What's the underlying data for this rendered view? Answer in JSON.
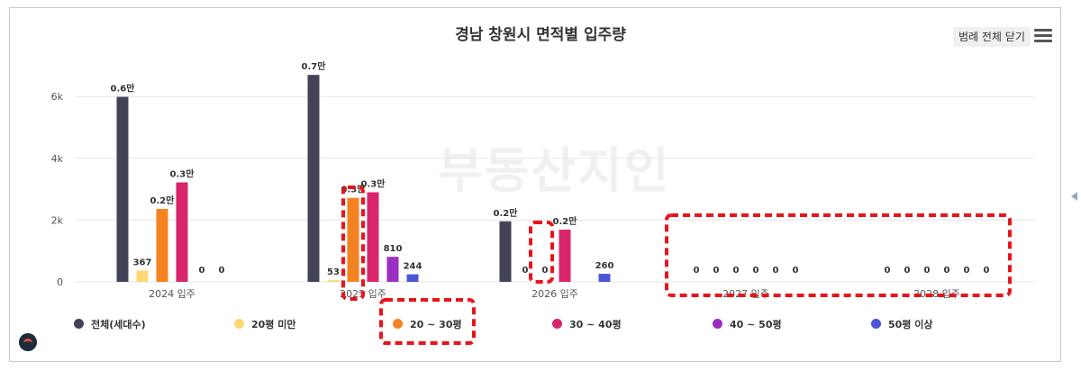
{
  "title": "경남 창원시 면적별 입주량",
  "legend_toggle_label": "범례 전체 닫기",
  "watermark": "부동산지인",
  "chart_data": {
    "type": "bar",
    "title": "경남 창원시 면적별 입주량",
    "categories": [
      "2024 입주",
      "2025 입주",
      "2026 입주",
      "2027 입주",
      "2028 입주"
    ],
    "y_ticks": [
      "0",
      "2k",
      "4k",
      "6k"
    ],
    "ylim": [
      0,
      7000
    ],
    "grid": true,
    "legend_position": "bottom",
    "series": [
      {
        "name": "전체(세대수)",
        "color": "#434358",
        "values": [
          5990,
          6700,
          1960,
          0,
          0
        ],
        "labels": [
          "0.6만",
          "0.7만",
          "0.2만",
          "0",
          "0"
        ]
      },
      {
        "name": "20평 미만",
        "color": "#fcd773",
        "values": [
          367,
          53,
          0,
          0,
          0
        ],
        "labels": [
          "367",
          "53",
          "0",
          "0",
          "0"
        ]
      },
      {
        "name": "20 ~ 30평",
        "color": "#f58220",
        "values": [
          2360,
          2720,
          0,
          0,
          0
        ],
        "labels": [
          "0.2만",
          "0.3만",
          "0",
          "0",
          "0"
        ]
      },
      {
        "name": "30 ~ 40평",
        "color": "#d9256b",
        "values": [
          3220,
          2900,
          1690,
          0,
          0
        ],
        "labels": [
          "0.3만",
          "0.3만",
          "0.2만",
          "0",
          "0"
        ]
      },
      {
        "name": "40 ~ 50평",
        "color": "#9b2fc4",
        "values": [
          0,
          810,
          0,
          0,
          0
        ],
        "labels": [
          "0",
          "810",
          "",
          "0",
          "0"
        ]
      },
      {
        "name": "50평 이상",
        "color": "#4c55d6",
        "values": [
          0,
          244,
          260,
          0,
          0
        ],
        "labels": [
          "0",
          "244",
          "260",
          "0",
          "0"
        ]
      }
    ]
  }
}
